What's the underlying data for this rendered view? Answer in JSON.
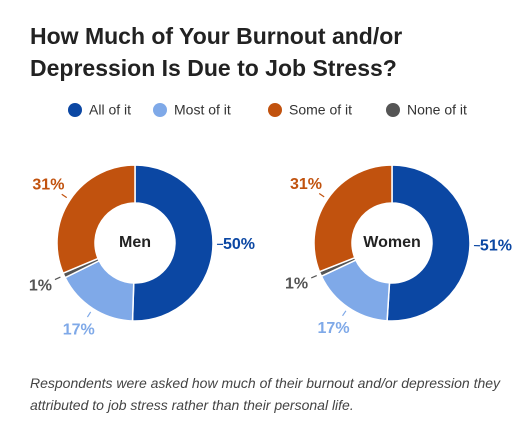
{
  "title": "How Much of Your Burnout and/or Depression Is Due to Job Stress?",
  "note": "Respondents were asked how much of their burnout and/or depression they attributed to job stress rather than their personal life.",
  "chart_data": [
    {
      "type": "pie",
      "title": "Men",
      "categories": [
        "All of it",
        "Most of it",
        "Some of it",
        "None of it"
      ],
      "values": [
        50,
        17,
        31,
        1
      ],
      "value_labels": [
        "50%",
        "17%",
        "31%",
        "1%"
      ],
      "colors": [
        "#0b47a3",
        "#7fa9e8",
        "#c1520e",
        "#555555"
      ]
    },
    {
      "type": "pie",
      "title": "Women",
      "categories": [
        "All of it",
        "Most of it",
        "Some of it",
        "None of it"
      ],
      "values": [
        51,
        17,
        31,
        1
      ],
      "value_labels": [
        "51%",
        "17%",
        "31%",
        "1%"
      ],
      "colors": [
        "#0b47a3",
        "#7fa9e8",
        "#c1520e",
        "#555555"
      ]
    }
  ]
}
